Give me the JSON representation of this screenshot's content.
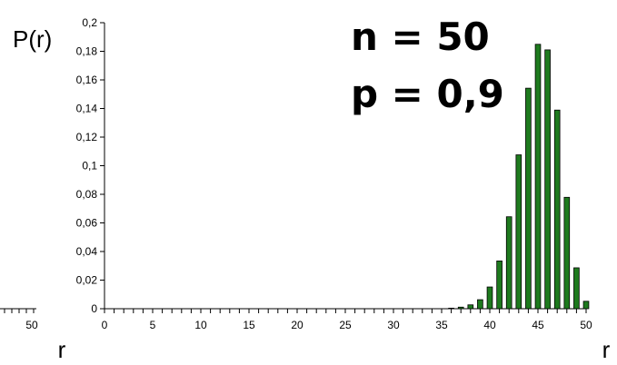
{
  "chart_data": {
    "type": "bar",
    "ylabel": "P(r)",
    "xlabel": "r",
    "annotations": [
      "n = 50",
      "p = 0,9"
    ],
    "x": [
      0,
      1,
      2,
      3,
      4,
      5,
      6,
      7,
      8,
      9,
      10,
      11,
      12,
      13,
      14,
      15,
      16,
      17,
      18,
      19,
      20,
      21,
      22,
      23,
      24,
      25,
      26,
      27,
      28,
      29,
      30,
      31,
      32,
      33,
      34,
      35,
      36,
      37,
      38,
      39,
      40,
      41,
      42,
      43,
      44,
      45,
      46,
      47,
      48,
      49,
      50
    ],
    "values": [
      0,
      0,
      0,
      0,
      0,
      0,
      0,
      0,
      0,
      0,
      0,
      0,
      0,
      0,
      0,
      0,
      0,
      0,
      0,
      0,
      0,
      0,
      0,
      0,
      0,
      0,
      0,
      0,
      0,
      0,
      0,
      0,
      0,
      0,
      0,
      0,
      0.0004,
      0.0011,
      0.0027,
      0.0063,
      0.0152,
      0.0334,
      0.0643,
      0.1076,
      0.1542,
      0.1849,
      0.181,
      0.1389,
      0.0779,
      0.0286,
      0.0052
    ],
    "x_ticks": [
      "0",
      "5",
      "10",
      "15",
      "20",
      "25",
      "30",
      "35",
      "40",
      "45",
      "50"
    ],
    "y_ticks": [
      "0",
      "0,02",
      "0,04",
      "0,06",
      "0,08",
      "0,1",
      "0,12",
      "0,14",
      "0,16",
      "0,18",
      "0,2"
    ],
    "xlim": [
      0,
      50
    ],
    "ylim": [
      0,
      0.2
    ],
    "bar_color": "#1e7a1e",
    "grid": false,
    "legend": "none",
    "left_fragment": {
      "tick_label": "50",
      "axis_label": "r"
    }
  }
}
